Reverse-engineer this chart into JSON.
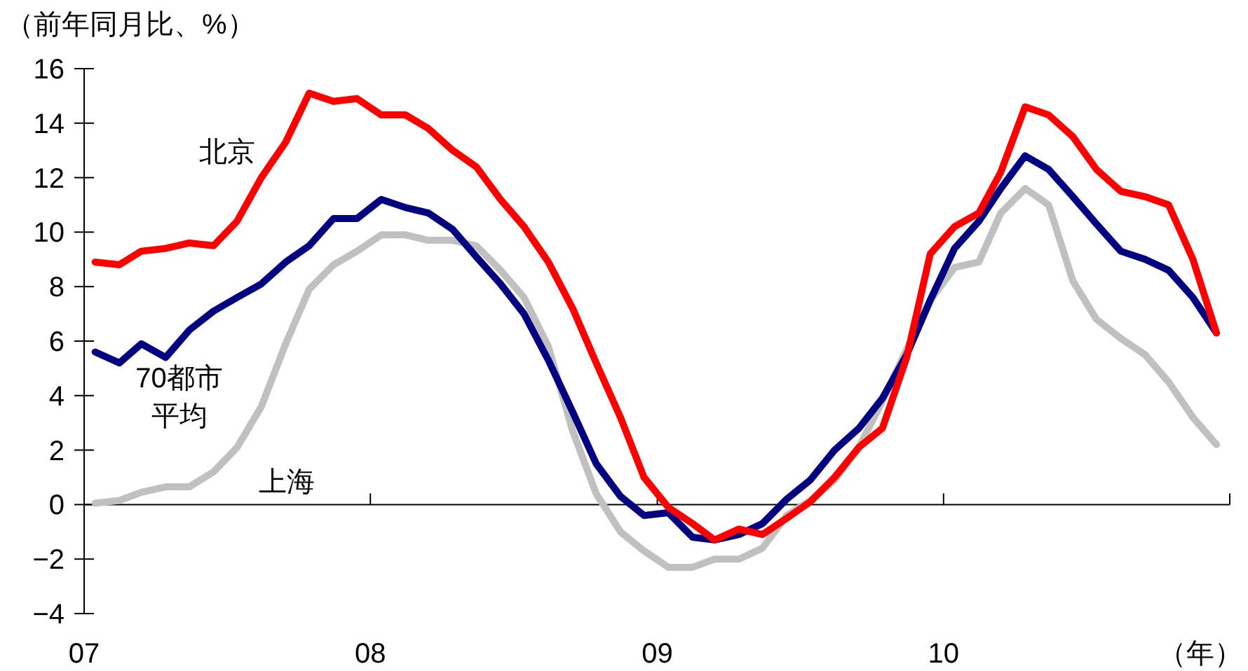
{
  "chart_data": {
    "type": "line",
    "ylabel": "（前年同月比、%）",
    "xlabel": "（年）",
    "x": [
      "2007-01-15",
      "2007-02-15",
      "2007-03-15",
      "2007-04-15",
      "2007-05-15",
      "2007-06-15",
      "2007-07-15",
      "2007-08-15",
      "2007-09-15",
      "2007-10-15",
      "2007-11-15",
      "2007-12-15",
      "2008-01-15",
      "2008-02-15",
      "2008-03-15",
      "2008-04-15",
      "2008-05-15",
      "2008-06-15",
      "2008-07-15",
      "2008-08-15",
      "2008-09-15",
      "2008-10-15",
      "2008-11-15",
      "2008-12-15",
      "2009-01-15",
      "2009-02-15",
      "2009-03-15",
      "2009-04-15",
      "2009-05-15",
      "2009-06-15",
      "2009-07-15",
      "2009-08-15",
      "2009-09-15",
      "2009-10-15",
      "2009-11-15",
      "2009-12-15",
      "2010-01-15",
      "2010-02-15",
      "2010-03-15",
      "2010-04-15",
      "2010-05-15",
      "2010-06-15",
      "2010-07-15",
      "2010-08-15",
      "2010-09-15",
      "2010-10-15",
      "2010-11-15",
      "2010-12-15"
    ],
    "xlim": [
      "2007-01-01",
      "2011-01-01"
    ],
    "xticks": [
      {
        "value": "2007-01-01",
        "label": "07"
      },
      {
        "value": "2008-01-01",
        "label": "08"
      },
      {
        "value": "2009-01-01",
        "label": "09"
      },
      {
        "value": "2010-01-01",
        "label": "10"
      },
      {
        "value": "2011-01-01",
        "label": null
      }
    ],
    "ylim": [
      -4,
      16
    ],
    "yticks": [
      -4,
      -2,
      0,
      2,
      4,
      6,
      8,
      10,
      12,
      14,
      16
    ],
    "series": [
      {
        "name": "北京",
        "color": "#ff0000",
        "values": [
          8.9,
          8.8,
          9.3,
          9.4,
          9.6,
          9.5,
          10.4,
          12.0,
          13.3,
          15.1,
          14.8,
          14.9,
          14.3,
          14.3,
          13.8,
          13.0,
          12.4,
          11.2,
          10.2,
          8.9,
          7.2,
          5.2,
          3.2,
          1.0,
          -0.1,
          -0.7,
          -1.3,
          -0.9,
          -1.1,
          -0.5,
          0.1,
          1.0,
          2.1,
          2.8,
          5.4,
          9.2,
          10.2,
          10.7,
          12.2,
          14.6,
          14.3,
          13.5,
          12.3,
          11.5,
          11.3,
          11.0,
          9.0,
          6.3
        ]
      },
      {
        "name": "70都市平均",
        "color": "#000080",
        "values": [
          5.6,
          5.2,
          5.9,
          5.4,
          6.4,
          7.1,
          7.6,
          8.1,
          8.9,
          9.5,
          10.5,
          10.5,
          11.2,
          10.9,
          10.7,
          10.1,
          9.1,
          8.1,
          7.0,
          5.3,
          3.4,
          1.5,
          0.3,
          -0.4,
          -0.3,
          -1.2,
          -1.3,
          -1.1,
          -0.7,
          0.2,
          0.9,
          2.0,
          2.8,
          3.9,
          5.5,
          7.5,
          9.4,
          10.4,
          11.6,
          12.8,
          12.3,
          11.3,
          10.3,
          9.3,
          9.0,
          8.6,
          7.6,
          6.3
        ]
      },
      {
        "name": "上海",
        "color": "#c0c0c0",
        "values": [
          0.05,
          0.15,
          0.45,
          0.65,
          0.65,
          1.2,
          2.1,
          3.6,
          5.9,
          7.9,
          8.8,
          9.3,
          9.9,
          9.9,
          9.7,
          9.7,
          9.5,
          8.6,
          7.6,
          5.8,
          2.7,
          0.4,
          -1.0,
          -1.7,
          -2.3,
          -2.3,
          -2.0,
          -2.0,
          -1.6,
          -0.4,
          0.15,
          0.9,
          2.1,
          3.8,
          5.7,
          7.5,
          8.7,
          8.9,
          10.7,
          11.6,
          11.0,
          8.2,
          6.8,
          6.1,
          5.5,
          4.5,
          3.2,
          2.2
        ]
      }
    ]
  }
}
